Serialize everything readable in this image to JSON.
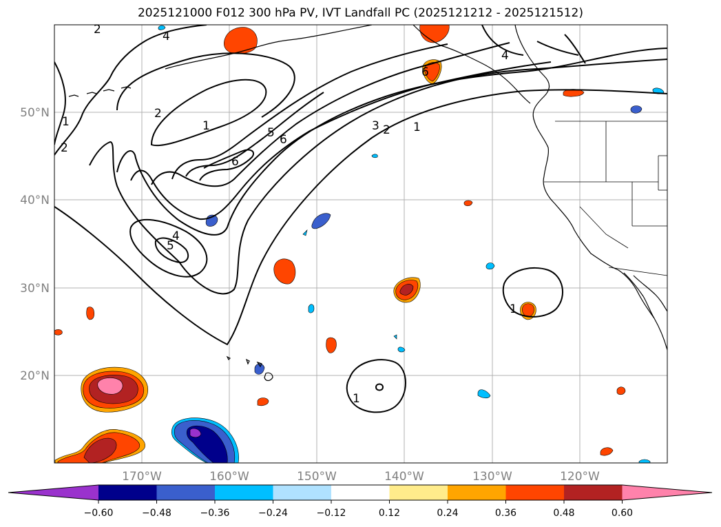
{
  "title": "2025121000 F012 300 hPa PV, IVT Landfall PC (2025121212 - 2025121512)",
  "map": {
    "lat_labels": [
      "50°N",
      "40°N",
      "30°N",
      "20°N"
    ],
    "lon_labels": [
      "170°W",
      "160°W",
      "150°W",
      "140°W",
      "130°W",
      "120°W"
    ],
    "contour_labels": [
      "2",
      "4",
      "1",
      "2",
      "2",
      "1",
      "5",
      "6",
      "6",
      "4",
      "5",
      "3",
      "2",
      "1",
      "6",
      "4",
      "1",
      "1"
    ]
  },
  "colorbar": {
    "ticks": [
      "−0.60",
      "−0.48",
      "−0.36",
      "−0.24",
      "−0.12",
      "0.12",
      "0.24",
      "0.36",
      "0.48",
      "0.60"
    ],
    "colors": [
      "#9a32cd",
      "#00008b",
      "#3a5fcd",
      "#00bfff",
      "#b0e2ff",
      "#ffffff",
      "#ffec8b",
      "#ffa500",
      "#ff4500",
      "#b22222",
      "#ff82ab"
    ]
  }
}
